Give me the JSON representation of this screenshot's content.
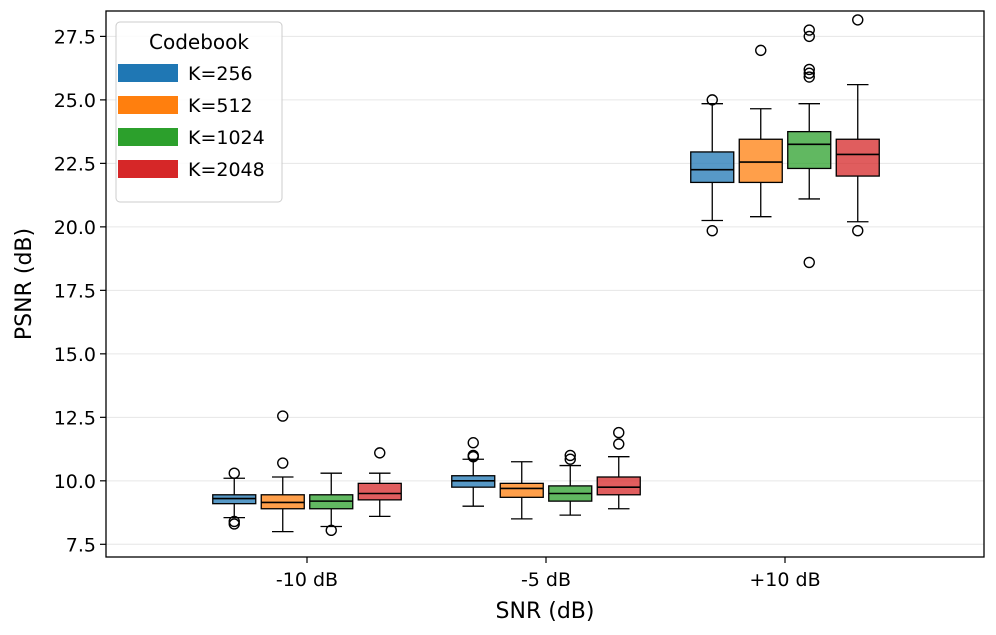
{
  "chart_data": {
    "type": "box",
    "title": "",
    "xlabel": "SNR (dB)",
    "ylabel": "PSNR (dB)",
    "ylim": [
      7.0,
      28.5
    ],
    "yticks": [
      7.5,
      10.0,
      12.5,
      15.0,
      17.5,
      20.0,
      22.5,
      25.0,
      27.5
    ],
    "ytick_labels": [
      "7.5",
      "10.0",
      "12.5",
      "15.0",
      "17.5",
      "20.0",
      "22.5",
      "25.0",
      "27.5"
    ],
    "grid": "horizontal",
    "categories": [
      "-10 dB",
      "-5 dB",
      "+10 dB"
    ],
    "legend": {
      "title": "Codebook",
      "position": "top-left"
    },
    "series": [
      {
        "name": "K=256",
        "color": "#1f77b4",
        "boxes": [
          {
            "whislo": 8.55,
            "q1": 9.1,
            "med": 9.3,
            "q3": 9.45,
            "whishi": 10.1,
            "fliers": [
              10.3,
              8.4,
              8.3
            ]
          },
          {
            "whislo": 9.0,
            "q1": 9.75,
            "med": 10.0,
            "q3": 10.2,
            "whishi": 10.85,
            "fliers": [
              11.5,
              11.0,
              10.95
            ]
          },
          {
            "whislo": 20.25,
            "q1": 21.75,
            "med": 22.25,
            "q3": 22.95,
            "whishi": 24.85,
            "fliers": [
              25.0,
              19.85
            ]
          }
        ]
      },
      {
        "name": "K=512",
        "color": "#ff7f0e",
        "boxes": [
          {
            "whislo": 8.0,
            "q1": 8.9,
            "med": 9.15,
            "q3": 9.45,
            "whishi": 10.15,
            "fliers": [
              12.55,
              10.7
            ]
          },
          {
            "whislo": 8.5,
            "q1": 9.35,
            "med": 9.7,
            "q3": 9.9,
            "whishi": 10.75,
            "fliers": []
          },
          {
            "whislo": 20.4,
            "q1": 21.75,
            "med": 22.55,
            "q3": 23.45,
            "whishi": 24.65,
            "fliers": [
              26.95
            ]
          }
        ]
      },
      {
        "name": "K=1024",
        "color": "#2ca02c",
        "boxes": [
          {
            "whislo": 8.2,
            "q1": 8.9,
            "med": 9.2,
            "q3": 9.45,
            "whishi": 10.3,
            "fliers": [
              8.05
            ]
          },
          {
            "whislo": 8.65,
            "q1": 9.2,
            "med": 9.5,
            "q3": 9.8,
            "whishi": 10.6,
            "fliers": [
              11.0,
              10.85
            ]
          },
          {
            "whislo": 21.1,
            "q1": 22.3,
            "med": 23.25,
            "q3": 23.75,
            "whishi": 24.85,
            "fliers": [
              27.75,
              27.5,
              26.2,
              26.05,
              25.9,
              18.6
            ]
          }
        ]
      },
      {
        "name": "K=2048",
        "color": "#d62728",
        "boxes": [
          {
            "whislo": 8.6,
            "q1": 9.25,
            "med": 9.5,
            "q3": 9.9,
            "whishi": 10.3,
            "fliers": [
              11.1
            ]
          },
          {
            "whislo": 8.9,
            "q1": 9.45,
            "med": 9.75,
            "q3": 10.15,
            "whishi": 10.95,
            "fliers": [
              11.9,
              11.45
            ]
          },
          {
            "whislo": 20.2,
            "q1": 22.0,
            "med": 22.85,
            "q3": 23.45,
            "whishi": 25.6,
            "fliers": [
              28.15,
              19.85
            ]
          }
        ]
      }
    ]
  }
}
